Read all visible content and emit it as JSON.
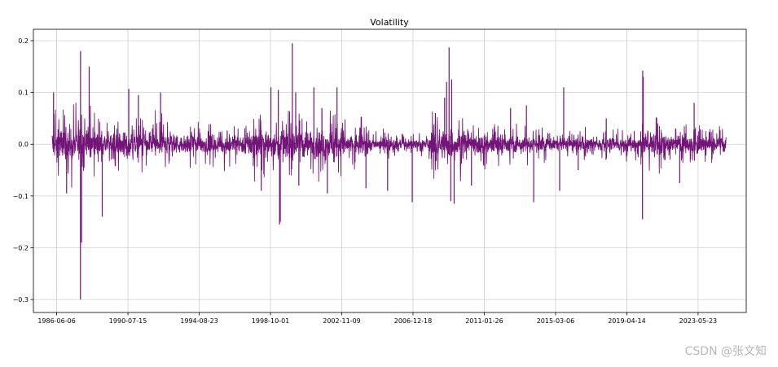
{
  "chart_data": {
    "type": "line",
    "title": "Volatility",
    "xlabel": "",
    "ylabel": "",
    "series_color": "#731478",
    "grid": true,
    "legend": "none",
    "xlim": [
      "1985-02-01",
      "2026-03-01"
    ],
    "ylim": [
      -0.325,
      0.222
    ],
    "xticks": [
      "1986-06-06",
      "1990-07-15",
      "1994-08-23",
      "1998-10-01",
      "2002-11-09",
      "2006-12-18",
      "2011-01-26",
      "2015-03-06",
      "2019-04-14",
      "2023-05-23"
    ],
    "yticks": [
      0.2,
      0.1,
      0.0,
      -0.1,
      -0.2,
      -0.3
    ],
    "ytick_labels": [
      "0.2",
      "0.1",
      "0.0",
      "−0.1",
      "−0.2",
      "−0.3"
    ],
    "data_start": "1986-03-01",
    "data_end": "2024-12-31",
    "spikes": [
      {
        "date": "1986-04-01",
        "value": 0.1
      },
      {
        "date": "1987-01-01",
        "value": -0.095
      },
      {
        "date": "1987-10-19",
        "value": -0.3
      },
      {
        "date": "1987-10-21",
        "value": 0.18
      },
      {
        "date": "1987-11-10",
        "value": -0.19
      },
      {
        "date": "1988-04-20",
        "value": 0.15
      },
      {
        "date": "1989-01-20",
        "value": -0.14
      },
      {
        "date": "1990-08-01",
        "value": 0.107
      },
      {
        "date": "1991-02-20",
        "value": 0.095
      },
      {
        "date": "1992-06-01",
        "value": 0.1
      },
      {
        "date": "1998-03-20",
        "value": -0.09
      },
      {
        "date": "1998-10-10",
        "value": 0.11
      },
      {
        "date": "1999-03-15",
        "value": 0.105
      },
      {
        "date": "1999-04-10",
        "value": -0.155
      },
      {
        "date": "1999-04-25",
        "value": -0.15
      },
      {
        "date": "2000-01-04",
        "value": 0.195
      },
      {
        "date": "2000-03-15",
        "value": 0.1
      },
      {
        "date": "2000-05-20",
        "value": -0.08
      },
      {
        "date": "2001-04-01",
        "value": 0.11
      },
      {
        "date": "2001-09-17",
        "value": 0.07
      },
      {
        "date": "2002-01-10",
        "value": -0.095
      },
      {
        "date": "2002-08-01",
        "value": 0.11
      },
      {
        "date": "2003-08-15",
        "value": -0.035
      },
      {
        "date": "2004-04-01",
        "value": -0.085
      },
      {
        "date": "2005-07-01",
        "value": -0.09
      },
      {
        "date": "2006-12-01",
        "value": -0.112
      },
      {
        "date": "2008-04-01",
        "value": 0.06
      },
      {
        "date": "2008-10-13",
        "value": 0.09
      },
      {
        "date": "2008-11-24",
        "value": 0.12
      },
      {
        "date": "2009-01-15",
        "value": 0.187
      },
      {
        "date": "2009-02-20",
        "value": -0.11
      },
      {
        "date": "2009-03-10",
        "value": 0.125
      },
      {
        "date": "2009-05-01",
        "value": -0.115
      },
      {
        "date": "2010-05-01",
        "value": -0.08
      },
      {
        "date": "2012-08-01",
        "value": 0.07
      },
      {
        "date": "2013-07-01",
        "value": 0.075
      },
      {
        "date": "2013-12-01",
        "value": -0.112
      },
      {
        "date": "2015-06-01",
        "value": -0.09
      },
      {
        "date": "2015-08-24",
        "value": 0.11
      },
      {
        "date": "2016-06-24",
        "value": -0.05
      },
      {
        "date": "2018-02-05",
        "value": 0.05
      },
      {
        "date": "2020-03-09",
        "value": -0.145
      },
      {
        "date": "2020-03-13",
        "value": 0.142
      },
      {
        "date": "2020-03-24",
        "value": 0.13
      },
      {
        "date": "2022-05-01",
        "value": -0.075
      },
      {
        "date": "2023-03-01",
        "value": 0.08
      }
    ],
    "regimes": [
      {
        "start": "1986-03-01",
        "end": "1988-06-01",
        "amp": 0.042
      },
      {
        "start": "1988-06-01",
        "end": "1990-01-01",
        "amp": 0.03
      },
      {
        "start": "1990-01-01",
        "end": "1993-01-01",
        "amp": 0.027
      },
      {
        "start": "1993-01-01",
        "end": "1997-06-01",
        "amp": 0.022
      },
      {
        "start": "1997-06-01",
        "end": "2002-12-31",
        "amp": 0.034
      },
      {
        "start": "2002-12-31",
        "end": "2004-06-01",
        "amp": 0.024
      },
      {
        "start": "2004-06-01",
        "end": "2007-12-31",
        "amp": 0.014
      },
      {
        "start": "2007-12-31",
        "end": "2009-12-31",
        "amp": 0.036
      },
      {
        "start": "2009-12-31",
        "end": "2012-12-31",
        "amp": 0.024
      },
      {
        "start": "2012-12-31",
        "end": "2019-12-31",
        "amp": 0.016
      },
      {
        "start": "2019-12-31",
        "end": "2021-06-01",
        "amp": 0.03
      },
      {
        "start": "2021-06-01",
        "end": "2024-12-31",
        "amp": 0.02
      }
    ]
  },
  "watermark": "CSDN @张文知"
}
